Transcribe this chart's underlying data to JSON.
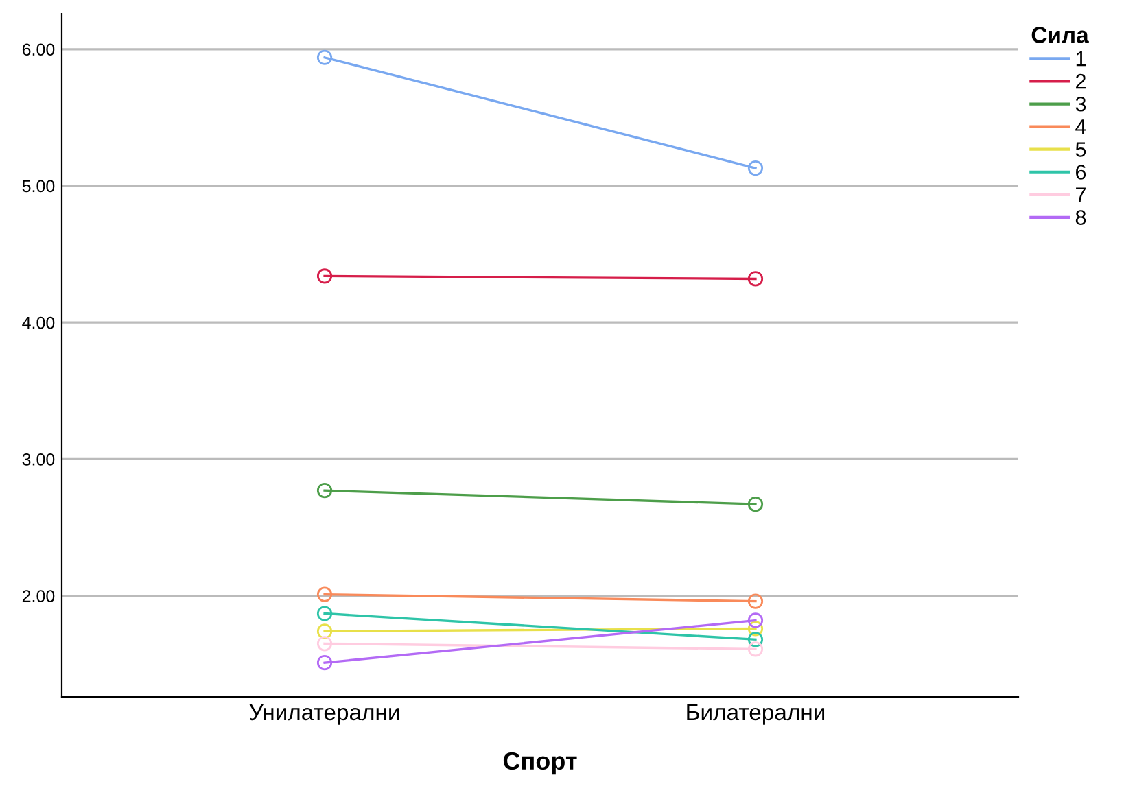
{
  "chart_data": {
    "type": "line",
    "xlabel": "Спорт",
    "legend_title": "Сила",
    "categories": [
      "Унилатерални",
      "Билатерални"
    ],
    "series": [
      {
        "name": "1",
        "color": "#79a8f0",
        "values": [
          5.94,
          5.13
        ]
      },
      {
        "name": "2",
        "color": "#d61e4a",
        "values": [
          4.34,
          4.32
        ]
      },
      {
        "name": "3",
        "color": "#4d9e4a",
        "values": [
          2.77,
          2.67
        ]
      },
      {
        "name": "4",
        "color": "#f98a5a",
        "values": [
          2.01,
          1.96
        ]
      },
      {
        "name": "5",
        "color": "#e8e04a",
        "values": [
          1.74,
          1.76
        ]
      },
      {
        "name": "6",
        "color": "#2ec4a8",
        "values": [
          1.87,
          1.68
        ]
      },
      {
        "name": "7",
        "color": "#ffcce0",
        "values": [
          1.65,
          1.61
        ]
      },
      {
        "name": "8",
        "color": "#b36af5",
        "values": [
          1.51,
          1.82
        ]
      }
    ],
    "ylim": [
      1.26,
      6.26
    ],
    "yticks": [
      {
        "value": 2,
        "label": "2.00"
      },
      {
        "value": 3,
        "label": "3.00"
      },
      {
        "value": 4,
        "label": "4.00"
      },
      {
        "value": 5,
        "label": "5.00"
      },
      {
        "value": 6,
        "label": "6.00"
      }
    ],
    "grid": "y",
    "legend": "top right",
    "marker": "circle",
    "line_style": "solid"
  }
}
